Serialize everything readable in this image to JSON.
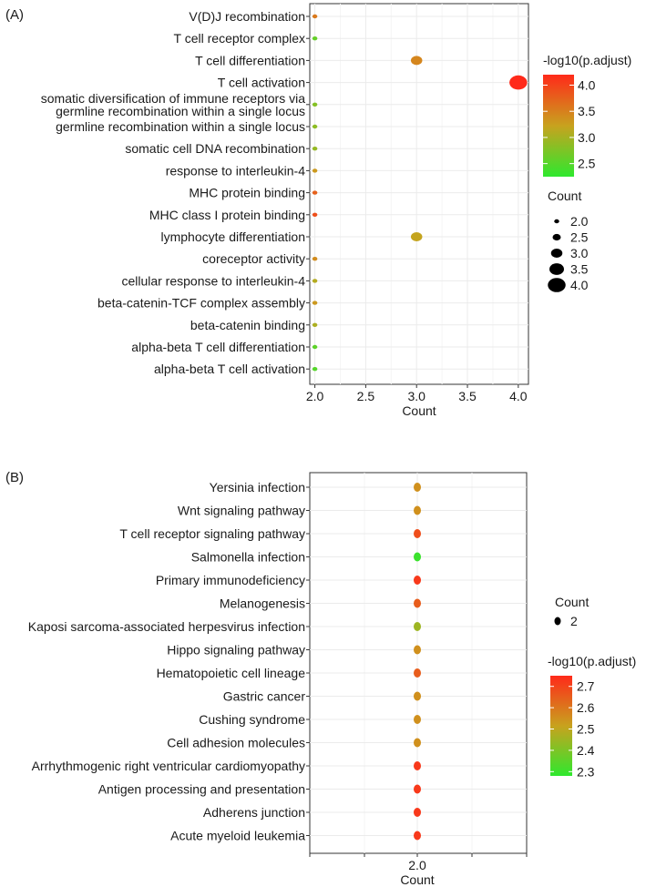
{
  "chart_data": [
    {
      "panel_label": "(A)",
      "type": "scatter",
      "xlabel": "Count",
      "ylabel": "",
      "xlim": [
        1.95,
        4.1
      ],
      "x_ticks": [
        "2.0",
        "2.5",
        "3.0",
        "3.5",
        "4.0"
      ],
      "x_tick_values": [
        2.0,
        2.5,
        3.0,
        3.5,
        4.0
      ],
      "categories": [
        "V(D)J recombination",
        "T cell receptor complex",
        "T cell differentiation",
        "T cell activation",
        "somatic diversification of immune receptors via germline recombination within a single locus",
        "germline recombination within a single locus",
        "somatic cell DNA recombination",
        "response to interleukin-4",
        "MHC protein binding",
        "MHC class I protein binding",
        "lymphocyte differentiation",
        "coreceptor activity",
        "cellular response to interleukin-4",
        "beta-catenin-TCF complex assembly",
        "beta-catenin binding",
        "alpha-beta T cell differentiation",
        "alpha-beta T cell activation"
      ],
      "category_display": [
        [
          "V(D)J recombination"
        ],
        [
          "T cell receptor complex"
        ],
        [
          "T cell differentiation"
        ],
        [
          "T cell activation"
        ],
        [
          "somatic diversification of immune receptors via",
          "germline recombination within a single locus"
        ],
        [
          "germline recombination within a single locus"
        ],
        [
          "somatic cell DNA recombination"
        ],
        [
          "response to interleukin-4"
        ],
        [
          "MHC protein binding"
        ],
        [
          "MHC class I protein binding"
        ],
        [
          "lymphocyte differentiation"
        ],
        [
          "coreceptor activity"
        ],
        [
          "cellular response to interleukin-4"
        ],
        [
          "beta-catenin-TCF complex assembly"
        ],
        [
          "beta-catenin binding"
        ],
        [
          "alpha-beta T cell differentiation"
        ],
        [
          "alpha-beta T cell activation"
        ]
      ],
      "count": [
        2,
        2,
        3,
        4,
        2,
        2,
        2,
        2,
        2,
        2,
        3,
        2,
        2,
        2,
        2,
        2,
        2
      ],
      "neg_log10_padj": [
        3.55,
        2.6,
        3.45,
        4.2,
        2.8,
        2.85,
        2.9,
        3.3,
        3.75,
        3.9,
        3.2,
        3.4,
        3.1,
        3.3,
        3.05,
        2.55,
        2.5
      ],
      "color_legend": {
        "title": "-log10(p.adjust)",
        "range": [
          2.25,
          4.2
        ],
        "ticks": [
          "4.0",
          "3.5",
          "3.0",
          "2.5"
        ],
        "tick_values": [
          4.0,
          3.5,
          3.0,
          2.5
        ],
        "low_color": "#2ee82e",
        "high_color": "#ff2a1a"
      },
      "size_legend": {
        "title": "Count",
        "labels": [
          "2.0",
          "2.5",
          "3.0",
          "3.5",
          "4.0"
        ],
        "values": [
          2.0,
          2.5,
          3.0,
          3.5,
          4.0
        ]
      },
      "grid": true
    },
    {
      "panel_label": "(B)",
      "type": "scatter",
      "xlabel": "Count",
      "ylabel": "",
      "x_ticks": [
        "2.0"
      ],
      "x_tick_values": [
        2.0
      ],
      "categories": [
        "Yersinia infection",
        "Wnt signaling pathway",
        "T cell receptor signaling pathway",
        "Salmonella infection",
        "Primary immunodeficiency",
        "Melanogenesis",
        "Kaposi sarcoma-associated herpesvirus infection",
        "Hippo signaling pathway",
        "Hematopoietic cell lineage",
        "Gastric cancer",
        "Cushing syndrome",
        "Cell adhesion molecules",
        "Arrhythmogenic right ventricular cardiomyopathy",
        "Antigen processing and presentation",
        "Adherens junction",
        "Acute myeloid leukemia"
      ],
      "count": [
        2,
        2,
        2,
        2,
        2,
        2,
        2,
        2,
        2,
        2,
        2,
        2,
        2,
        2,
        2,
        2
      ],
      "neg_log10_padj": [
        2.55,
        2.55,
        2.68,
        2.3,
        2.72,
        2.65,
        2.45,
        2.55,
        2.65,
        2.55,
        2.55,
        2.55,
        2.72,
        2.72,
        2.72,
        2.72
      ],
      "color_legend": {
        "title": "-log10(p.adjust)",
        "range": [
          2.28,
          2.75
        ],
        "ticks": [
          "2.7",
          "2.6",
          "2.5",
          "2.4",
          "2.3"
        ],
        "tick_values": [
          2.7,
          2.6,
          2.5,
          2.4,
          2.3
        ],
        "low_color": "#2ee82e",
        "high_color": "#ff2a1a"
      },
      "size_legend": {
        "title": "Count",
        "labels": [
          "2"
        ],
        "values": [
          2
        ]
      },
      "grid": true
    }
  ]
}
